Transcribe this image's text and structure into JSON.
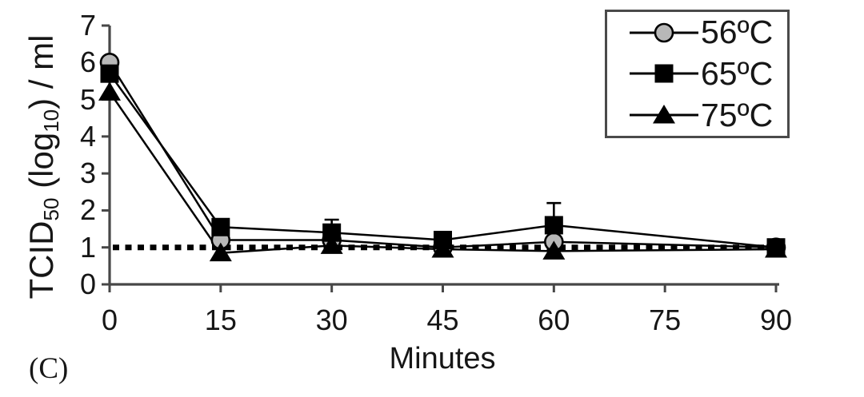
{
  "figure": {
    "panel_label": "(C)",
    "background": "#ffffff"
  },
  "colors": {
    "axis": "#474747",
    "text": "#161616",
    "series_line": "#000000",
    "circle_fill": "#b8b8b8",
    "black": "#000000",
    "legend_border": "#4a4a4a"
  },
  "chart_data": {
    "type": "line",
    "title": "",
    "xlabel": "Minutes",
    "ylabel": "TCID50 (log10) / ml",
    "ylabel_parts": {
      "base1": "TCID",
      "sub1": "50",
      "base2": " (log",
      "sub2": "10",
      "base3": ") / ml"
    },
    "xaxis": {
      "ticks": [
        0,
        15,
        30,
        45,
        60,
        75,
        90
      ],
      "range": [
        0,
        90
      ]
    },
    "yaxis": {
      "ticks": [
        0,
        1,
        2,
        3,
        4,
        5,
        6,
        7
      ],
      "range": [
        0,
        7
      ]
    },
    "grid": false,
    "legend_position": "top-right",
    "x": [
      0,
      15,
      30,
      45,
      60,
      90
    ],
    "series": [
      {
        "name": "56ºC",
        "marker": "circle",
        "marker_fill": "#b8b8b8",
        "line_color": "#000000",
        "values": [
          6.0,
          1.2,
          1.2,
          1.0,
          1.15,
          1.0
        ],
        "err_up": [
          0,
          0,
          0,
          0,
          0,
          0
        ]
      },
      {
        "name": "65ºC",
        "marker": "square",
        "marker_fill": "#000000",
        "line_color": "#000000",
        "values": [
          5.7,
          1.55,
          1.4,
          1.2,
          1.6,
          1.0
        ],
        "err_up": [
          0,
          0,
          0.35,
          0,
          0.6,
          0
        ]
      },
      {
        "name": "75ºC",
        "marker": "triangle",
        "marker_fill": "#000000",
        "line_color": "#000000",
        "values": [
          5.2,
          0.85,
          1.05,
          0.95,
          0.9,
          0.95
        ],
        "err_up": [
          0,
          0,
          0,
          0,
          0,
          0
        ]
      }
    ],
    "reference_line": {
      "y": 1.0,
      "style": "dotted",
      "color": "#000000"
    }
  }
}
